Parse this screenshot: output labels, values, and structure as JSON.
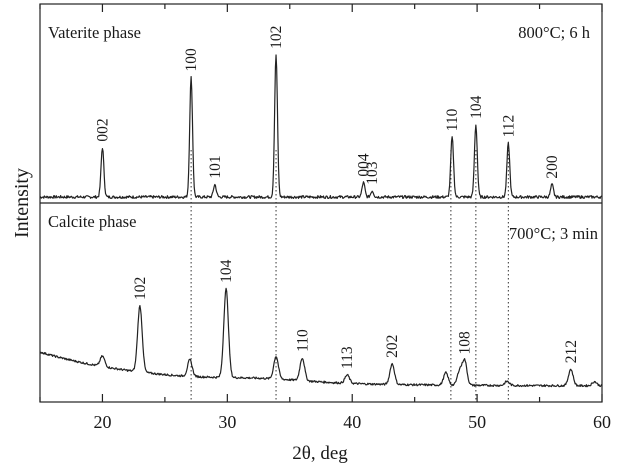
{
  "chart_data": {
    "type": "line",
    "xlabel": "2θ, deg",
    "ylabel": "Intensity",
    "xlim": [
      15,
      60
    ],
    "x_ticks": [
      20,
      30,
      40,
      50,
      60
    ],
    "grid": false,
    "guide_lines_x": [
      27.1,
      33.9,
      47.9,
      49.9,
      52.5
    ],
    "series": [
      {
        "name": "Vaterite phase",
        "condition": "800°C; 6 h",
        "peaks": [
          {
            "x": 20.0,
            "intensity": 0.24,
            "hkl": "002"
          },
          {
            "x": 27.1,
            "intensity": 0.58,
            "hkl": "100"
          },
          {
            "x": 29.0,
            "intensity": 0.06,
            "hkl": "101"
          },
          {
            "x": 33.9,
            "intensity": 0.69,
            "hkl": "102"
          },
          {
            "x": 40.9,
            "intensity": 0.07,
            "hkl": "004"
          },
          {
            "x": 41.6,
            "intensity": 0.03,
            "hkl": "103"
          },
          {
            "x": 48.0,
            "intensity": 0.29,
            "hkl": "110"
          },
          {
            "x": 49.9,
            "intensity": 0.35,
            "hkl": "104"
          },
          {
            "x": 52.5,
            "intensity": 0.26,
            "hkl": "112"
          },
          {
            "x": 56.0,
            "intensity": 0.06,
            "hkl": "200"
          }
        ]
      },
      {
        "name": "Calcite phase",
        "condition": "700°C; 3 min",
        "peaks": [
          {
            "x": 20.0,
            "intensity": 0.05,
            "hkl": ""
          },
          {
            "x": 23.0,
            "intensity": 0.32,
            "hkl": "102"
          },
          {
            "x": 27.0,
            "intensity": 0.08,
            "hkl": ""
          },
          {
            "x": 29.9,
            "intensity": 0.43,
            "hkl": "104"
          },
          {
            "x": 33.9,
            "intensity": 0.11,
            "hkl": ""
          },
          {
            "x": 36.0,
            "intensity": 0.11,
            "hkl": "110"
          },
          {
            "x": 39.6,
            "intensity": 0.04,
            "hkl": "113"
          },
          {
            "x": 43.2,
            "intensity": 0.1,
            "hkl": "202"
          },
          {
            "x": 47.5,
            "intensity": 0.06,
            "hkl": ""
          },
          {
            "x": 48.6,
            "intensity": 0.07,
            "hkl": ""
          },
          {
            "x": 49.0,
            "intensity": 0.12,
            "hkl": "108"
          },
          {
            "x": 52.4,
            "intensity": 0.02,
            "hkl": ""
          },
          {
            "x": 57.5,
            "intensity": 0.08,
            "hkl": "212"
          },
          {
            "x": 59.4,
            "intensity": 0.02,
            "hkl": ""
          }
        ]
      }
    ]
  }
}
